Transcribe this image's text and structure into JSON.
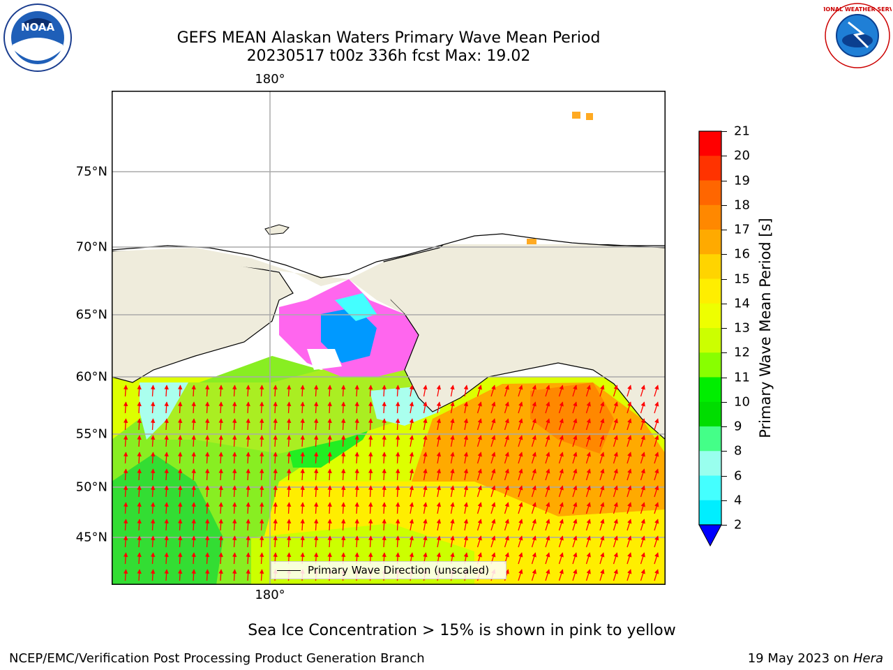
{
  "title_line1": "GEFS MEAN Alaskan Waters Primary Wave Mean Period",
  "title_line2": "20230517 t00z 336h fcst   Max: 19.02",
  "map": {
    "lon_label": "180°",
    "lon_label_bottom": "180°",
    "lat_labels": [
      "75°N",
      "70°N",
      "65°N",
      "60°N",
      "55°N",
      "50°N",
      "45°N"
    ],
    "land_color": "#efecdc",
    "arrow_color": "#ff0000",
    "legend_label": "Primary Wave Direction (unscaled)"
  },
  "colorbar": {
    "label": "Primary Wave Mean Period [s]",
    "ticks": [
      "21",
      "20",
      "19",
      "18",
      "17",
      "16",
      "15",
      "14",
      "13",
      "12",
      "11",
      "10",
      "9",
      "8",
      "6",
      "4",
      "2"
    ],
    "colors": [
      "#ff0000",
      "#ff3300",
      "#ff6600",
      "#ff8800",
      "#ffaa00",
      "#ffd400",
      "#ffee00",
      "#eeff00",
      "#ccff00",
      "#88ff00",
      "#00ee00",
      "#00dd00",
      "#44ff88",
      "#99ffee",
      "#44ffff",
      "#00eeff",
      "#0099ff",
      "#0066ff"
    ],
    "extend_color": "#0000ff"
  },
  "logos": {
    "left": "NOAA",
    "right": "NATIONAL WEATHER SERVICE"
  },
  "ice_note": "Sea Ice Concentration > 15% is shown in pink to yellow",
  "footer": {
    "left": "NCEP/EMC/Verification Post Processing Product Generation Branch",
    "date": "19 May 2023 on ",
    "host": "Hera"
  }
}
